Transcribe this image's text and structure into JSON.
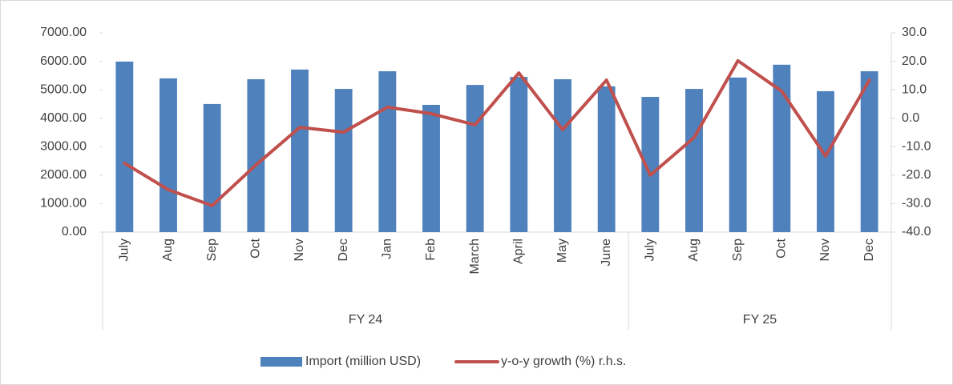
{
  "chart_data": {
    "type": "bar",
    "category_groups": [
      {
        "name": "FY 24",
        "categories": [
          "July",
          "Aug",
          "Sep",
          "Oct",
          "Nov",
          "Dec",
          "Jan",
          "Feb",
          "March",
          "April",
          "May",
          "June"
        ]
      },
      {
        "name": "FY 25",
        "categories": [
          "July",
          "Aug",
          "Sep",
          "Oct",
          "Nov",
          "Dec"
        ]
      }
    ],
    "series": [
      {
        "name": "Import (million USD)",
        "type": "bar",
        "color": "#4f81bd",
        "values": [
          5990,
          5400,
          4500,
          5370,
          5710,
          5030,
          5650,
          4470,
          5170,
          5450,
          5370,
          5120,
          4750,
          5030,
          5430,
          5880,
          4950,
          5650
        ]
      },
      {
        "name": "y-o-y growth (%) r.h.s.",
        "type": "line",
        "axis": "y2",
        "color": "#c0504d",
        "values": [
          -15.8,
          -25.1,
          -30.7,
          -16.4,
          -3.2,
          -4.9,
          3.9,
          1.6,
          -2.3,
          15.9,
          -4.0,
          13.4,
          -20.0,
          -6.8,
          20.2,
          9.5,
          -13.3,
          13.4
        ]
      }
    ],
    "ylim": [
      0,
      7000
    ],
    "yticks": [
      {
        "value": 0,
        "label": "0.00"
      },
      {
        "value": 1000,
        "label": "1000.00"
      },
      {
        "value": 2000,
        "label": "2000.00"
      },
      {
        "value": 3000,
        "label": "3000.00"
      },
      {
        "value": 4000,
        "label": "4000.00"
      },
      {
        "value": 5000,
        "label": "5000.00"
      },
      {
        "value": 6000,
        "label": "6000.00"
      },
      {
        "value": 7000,
        "label": "7000.00"
      }
    ],
    "y2lim": [
      -40,
      30
    ],
    "y2ticks": [
      {
        "value": -40,
        "label": "-40.0"
      },
      {
        "value": -30,
        "label": "-30.0"
      },
      {
        "value": -20,
        "label": "-20.0"
      },
      {
        "value": -10,
        "label": "-10.0"
      },
      {
        "value": 0,
        "label": "0.0"
      },
      {
        "value": 10,
        "label": "10.0"
      },
      {
        "value": 20,
        "label": "20.0"
      },
      {
        "value": 30,
        "label": "30.0"
      }
    ],
    "grid": false,
    "legend": "bottom"
  }
}
